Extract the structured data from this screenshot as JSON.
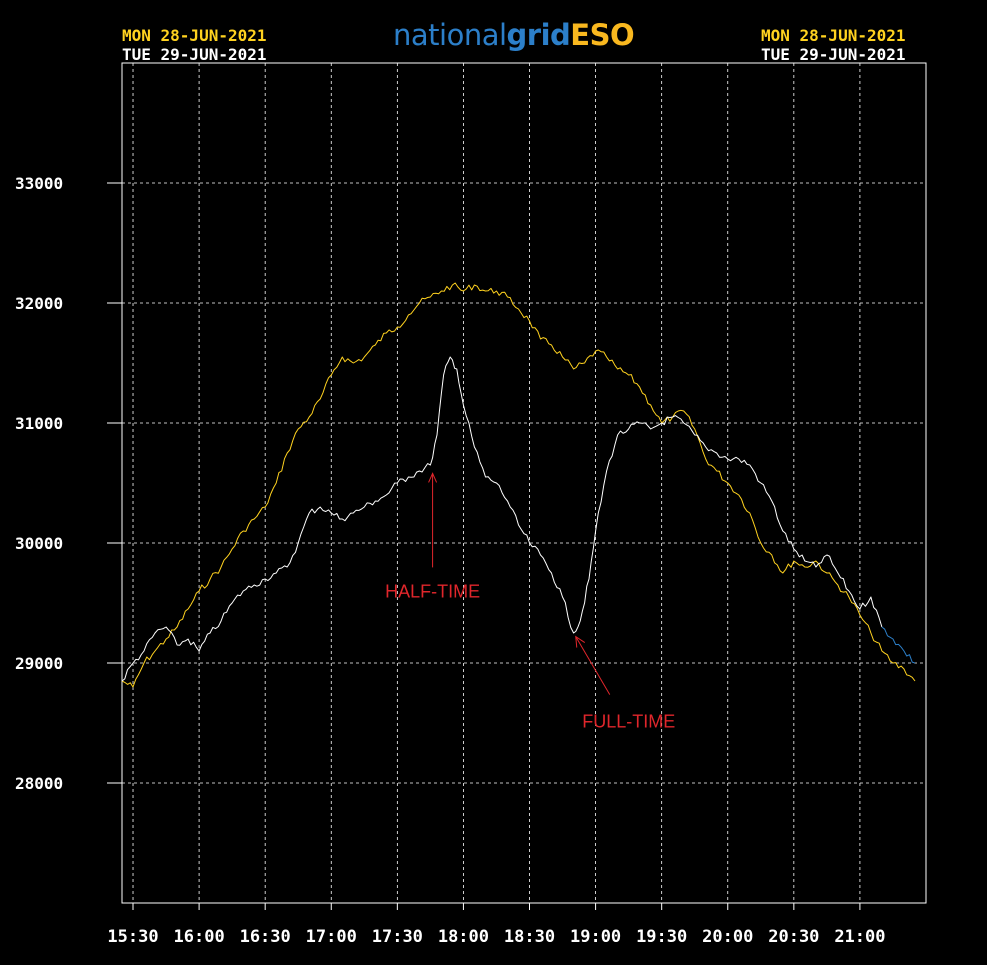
{
  "header": {
    "left_line1": "MON 28-JUN-2021",
    "left_line2": "TUE 29-JUN-2021",
    "right_line1": "MON 28-JUN-2021",
    "right_line2": "TUE 29-JUN-2021",
    "logo_part1": "national",
    "logo_part2": "grid",
    "logo_part3": "ESO"
  },
  "colors": {
    "background": "#000000",
    "series_mon": "#ffd21f",
    "series_tue": "#ffffff",
    "forecast": "#2c7fc9",
    "annotation": "#e0262b",
    "grid": "#ffffff"
  },
  "chart_data": {
    "type": "line",
    "title": "",
    "xlabel": "",
    "ylabel": "",
    "xlim": [
      "15:25",
      "21:30"
    ],
    "ylim": [
      27000,
      34000
    ],
    "grid": true,
    "x_ticks": [
      "15:30",
      "16:00",
      "16:30",
      "17:00",
      "17:30",
      "18:00",
      "18:30",
      "19:00",
      "19:30",
      "20:00",
      "20:30",
      "21:00"
    ],
    "y_ticks": [
      28000,
      29000,
      30000,
      31000,
      32000,
      33000
    ],
    "series": [
      {
        "name": "MON 28-JUN-2021",
        "color": "#ffd21f",
        "points": [
          [
            "15:25",
            28850
          ],
          [
            "15:30",
            28800
          ],
          [
            "15:35",
            29000
          ],
          [
            "15:40",
            29100
          ],
          [
            "15:45",
            29200
          ],
          [
            "15:50",
            29300
          ],
          [
            "15:55",
            29450
          ],
          [
            "16:00",
            29600
          ],
          [
            "16:05",
            29700
          ],
          [
            "16:10",
            29800
          ],
          [
            "16:15",
            29950
          ],
          [
            "16:20",
            30100
          ],
          [
            "16:25",
            30200
          ],
          [
            "16:30",
            30300
          ],
          [
            "16:35",
            30500
          ],
          [
            "16:40",
            30750
          ],
          [
            "16:45",
            30950
          ],
          [
            "16:50",
            31050
          ],
          [
            "16:55",
            31200
          ],
          [
            "17:00",
            31400
          ],
          [
            "17:05",
            31550
          ],
          [
            "17:10",
            31500
          ],
          [
            "17:15",
            31550
          ],
          [
            "17:20",
            31650
          ],
          [
            "17:25",
            31750
          ],
          [
            "17:30",
            31800
          ],
          [
            "17:35",
            31900
          ],
          [
            "17:40",
            32000
          ],
          [
            "17:45",
            32050
          ],
          [
            "17:50",
            32100
          ],
          [
            "17:55",
            32150
          ],
          [
            "18:00",
            32100
          ],
          [
            "18:05",
            32150
          ],
          [
            "18:10",
            32100
          ],
          [
            "18:15",
            32100
          ],
          [
            "18:20",
            32050
          ],
          [
            "18:25",
            31950
          ],
          [
            "18:30",
            31850
          ],
          [
            "18:35",
            31700
          ],
          [
            "18:40",
            31650
          ],
          [
            "18:45",
            31550
          ],
          [
            "18:50",
            31450
          ],
          [
            "18:55",
            31500
          ],
          [
            "19:00",
            31600
          ],
          [
            "19:05",
            31550
          ],
          [
            "19:10",
            31450
          ],
          [
            "19:15",
            31400
          ],
          [
            "19:20",
            31300
          ],
          [
            "19:25",
            31150
          ],
          [
            "19:30",
            31000
          ],
          [
            "19:35",
            31050
          ],
          [
            "19:40",
            31100
          ],
          [
            "19:45",
            30950
          ],
          [
            "19:50",
            30700
          ],
          [
            "19:55",
            30600
          ],
          [
            "20:00",
            30500
          ],
          [
            "20:05",
            30400
          ],
          [
            "20:10",
            30250
          ],
          [
            "20:15",
            30000
          ],
          [
            "20:20",
            29900
          ],
          [
            "20:25",
            29750
          ],
          [
            "20:30",
            29850
          ],
          [
            "20:35",
            29800
          ],
          [
            "20:40",
            29850
          ],
          [
            "20:45",
            29750
          ],
          [
            "20:50",
            29650
          ],
          [
            "20:55",
            29550
          ],
          [
            "21:00",
            29400
          ],
          [
            "21:05",
            29250
          ],
          [
            "21:10",
            29100
          ],
          [
            "21:15",
            29000
          ],
          [
            "21:20",
            28950
          ],
          [
            "21:25",
            28850
          ]
        ]
      },
      {
        "name": "TUE 29-JUN-2021",
        "color": "#ffffff",
        "points": [
          [
            "15:25",
            28850
          ],
          [
            "15:30",
            29000
          ],
          [
            "15:35",
            29100
          ],
          [
            "15:40",
            29250
          ],
          [
            "15:45",
            29300
          ],
          [
            "15:50",
            29150
          ],
          [
            "15:55",
            29200
          ],
          [
            "16:00",
            29100
          ],
          [
            "16:05",
            29250
          ],
          [
            "16:10",
            29350
          ],
          [
            "16:15",
            29500
          ],
          [
            "16:20",
            29600
          ],
          [
            "16:25",
            29650
          ],
          [
            "16:30",
            29700
          ],
          [
            "16:35",
            29750
          ],
          [
            "16:40",
            29800
          ],
          [
            "16:45",
            30000
          ],
          [
            "16:50",
            30250
          ],
          [
            "16:55",
            30300
          ],
          [
            "17:00",
            30250
          ],
          [
            "17:05",
            30200
          ],
          [
            "17:10",
            30250
          ],
          [
            "17:15",
            30300
          ],
          [
            "17:20",
            30350
          ],
          [
            "17:25",
            30400
          ],
          [
            "17:30",
            30500
          ],
          [
            "17:35",
            30550
          ],
          [
            "17:40",
            30600
          ],
          [
            "17:45",
            30650
          ],
          [
            "17:48",
            30900
          ],
          [
            "17:51",
            31400
          ],
          [
            "17:54",
            31550
          ],
          [
            "17:57",
            31450
          ],
          [
            "18:00",
            31150
          ],
          [
            "18:05",
            30800
          ],
          [
            "18:10",
            30550
          ],
          [
            "18:15",
            30500
          ],
          [
            "18:20",
            30350
          ],
          [
            "18:25",
            30150
          ],
          [
            "18:30",
            30000
          ],
          [
            "18:35",
            29900
          ],
          [
            "18:40",
            29750
          ],
          [
            "18:45",
            29550
          ],
          [
            "18:50",
            29250
          ],
          [
            "18:53",
            29350
          ],
          [
            "18:57",
            29700
          ],
          [
            "19:00",
            30100
          ],
          [
            "19:05",
            30600
          ],
          [
            "19:10",
            30900
          ],
          [
            "19:15",
            30950
          ],
          [
            "19:20",
            31000
          ],
          [
            "19:25",
            30950
          ],
          [
            "19:30",
            31000
          ],
          [
            "19:35",
            31050
          ],
          [
            "19:40",
            31000
          ],
          [
            "19:45",
            30900
          ],
          [
            "19:50",
            30800
          ],
          [
            "19:55",
            30750
          ],
          [
            "20:00",
            30700
          ],
          [
            "20:05",
            30700
          ],
          [
            "20:10",
            30650
          ],
          [
            "20:15",
            30500
          ],
          [
            "20:20",
            30350
          ],
          [
            "20:25",
            30100
          ],
          [
            "20:30",
            29950
          ],
          [
            "20:35",
            29850
          ],
          [
            "20:40",
            29800
          ],
          [
            "20:45",
            29900
          ],
          [
            "20:50",
            29750
          ],
          [
            "20:55",
            29600
          ],
          [
            "21:00",
            29450
          ],
          [
            "21:05",
            29550
          ],
          [
            "21:10",
            29300
          ]
        ]
      },
      {
        "name": "",
        "color": "#2c7fc9",
        "points": [
          [
            "21:10",
            29300
          ],
          [
            "21:15",
            29200
          ],
          [
            "21:20",
            29100
          ],
          [
            "21:25",
            29000
          ]
        ]
      }
    ],
    "annotations": [
      {
        "text": "HALF-TIME",
        "arrow_to": [
          "17:46",
          30580
        ]
      },
      {
        "text": "FULL-TIME",
        "arrow_to": [
          "18:51",
          29220
        ]
      }
    ]
  }
}
